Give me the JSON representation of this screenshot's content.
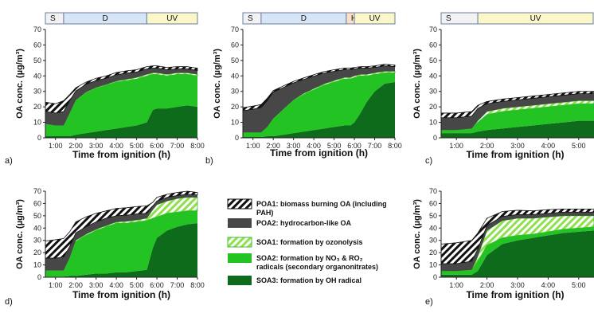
{
  "legend": [
    {
      "name": "POA1: biomass burning OA (including",
      "name2": "PAH)",
      "swatch": "hatch-black"
    },
    {
      "name": "POA2: hydrocarbon-like OA",
      "name2": "",
      "swatch": "#474747"
    },
    {
      "name": "SOA1: formation by ozonolysis",
      "name2": "",
      "swatch": "hatch-green"
    },
    {
      "name": "SOA2: formation by NO₃ & RO₂",
      "name2": "radicals (secondary organonitrates)",
      "swatch": "#22c322"
    },
    {
      "name": "SOA3: formation by OH radical",
      "name2": "",
      "swatch": "#0d6b1b"
    }
  ],
  "chart_data": [
    {
      "type": "area",
      "panel_label": "a)",
      "xlabel": "Time from ignition (h)",
      "ylabel": "OA conc. (µg/m³)",
      "xlim": [
        0.5,
        8
      ],
      "ylim": [
        0,
        70
      ],
      "xticks": [
        1,
        2,
        3,
        4,
        5,
        6,
        7,
        8
      ],
      "xtick_labels": [
        "1:00",
        "2:00",
        "3:00",
        "4:00",
        "5:00",
        "6:00",
        "7:00",
        "8:00"
      ],
      "yticks": [
        0,
        10,
        20,
        30,
        40,
        50,
        60,
        70
      ],
      "phases": [
        {
          "label": "S",
          "start": 0.5,
          "end": 1.4,
          "color": "#f2f2f2"
        },
        {
          "label": "D",
          "start": 1.4,
          "end": 5.5,
          "color": "#d6e6f7"
        },
        {
          "label": "UV",
          "start": 5.5,
          "end": 8,
          "color": "#fbf7c9"
        }
      ],
      "x": [
        0.5,
        1.0,
        1.4,
        1.7,
        2.0,
        2.5,
        3.0,
        3.5,
        4.0,
        4.5,
        5.0,
        5.5,
        5.8,
        6.0,
        6.5,
        7.0,
        7.5,
        8.0
      ],
      "series": [
        {
          "name": "SOA3",
          "values": [
            1,
            1,
            1,
            1,
            2,
            3,
            4,
            5,
            6,
            7,
            8,
            10,
            18,
            19,
            19,
            20,
            21,
            20
          ]
        },
        {
          "name": "SOA2",
          "values": [
            8,
            7,
            7,
            15,
            22,
            26,
            28,
            29,
            30,
            30,
            30,
            30,
            23,
            22,
            21,
            21,
            20,
            20
          ]
        },
        {
          "name": "SOA1",
          "values": [
            0,
            0,
            0,
            0,
            0.3,
            0.5,
            0.5,
            0.5,
            0.7,
            0.8,
            1,
            1,
            1,
            1,
            1,
            1,
            1,
            1
          ]
        },
        {
          "name": "POA2",
          "values": [
            8,
            8,
            9,
            8,
            6,
            5,
            4.5,
            4,
            4,
            4,
            3.5,
            3.5,
            3,
            3,
            3,
            2.5,
            2.5,
            2.5
          ]
        },
        {
          "name": "POA1",
          "values": [
            6,
            6,
            7,
            4,
            2,
            1.5,
            1.5,
            1.5,
            1.5,
            1.5,
            1.5,
            1.5,
            1.5,
            1.5,
            1.5,
            1.5,
            1.5,
            1.5
          ]
        }
      ]
    },
    {
      "type": "area",
      "panel_label": "b)",
      "xlabel": "Time from ignition (h)",
      "ylabel": "OA conc. (µg/m³)",
      "xlim": [
        0.5,
        8
      ],
      "ylim": [
        0,
        70
      ],
      "xticks": [
        1,
        2,
        3,
        4,
        5,
        6,
        7,
        8
      ],
      "xtick_labels": [
        "1:00",
        "2:00",
        "3:00",
        "4:00",
        "5:00",
        "6:00",
        "7:00",
        "8:00"
      ],
      "yticks": [
        0,
        10,
        20,
        30,
        40,
        50,
        60,
        70
      ],
      "phases": [
        {
          "label": "S",
          "start": 0.5,
          "end": 1.4,
          "color": "#f2f2f2"
        },
        {
          "label": "D",
          "start": 1.4,
          "end": 5.6,
          "color": "#d6e6f7"
        },
        {
          "label": "H",
          "start": 5.6,
          "end": 6.0,
          "color": "#fbe0c4"
        },
        {
          "label": "UV",
          "start": 6.0,
          "end": 8,
          "color": "#fbf7c9"
        }
      ],
      "x": [
        0.5,
        1.0,
        1.4,
        1.7,
        2.0,
        2.5,
        3.0,
        3.5,
        4.0,
        4.5,
        5.0,
        5.5,
        5.8,
        6.0,
        6.3,
        6.6,
        7.0,
        7.5,
        8.0
      ],
      "series": [
        {
          "name": "SOA3",
          "values": [
            0.5,
            0.5,
            0.5,
            1,
            1,
            2,
            3,
            4,
            5,
            6,
            7,
            8,
            8,
            10,
            16,
            23,
            30,
            35,
            36
          ]
        },
        {
          "name": "SOA2",
          "values": [
            3,
            3,
            3,
            6,
            11,
            16,
            21,
            24,
            26,
            28,
            29,
            30,
            30,
            29,
            24,
            17,
            11,
            7,
            6
          ]
        },
        {
          "name": "SOA1",
          "values": [
            0,
            0,
            0,
            0,
            0.5,
            0.5,
            0.5,
            0.7,
            0.8,
            0.8,
            1,
            1,
            1,
            1,
            1,
            1,
            1,
            1,
            1
          ]
        },
        {
          "name": "POA2",
          "values": [
            14,
            15,
            16,
            17,
            17,
            14,
            11,
            9,
            8,
            7,
            6,
            5,
            5,
            4.5,
            4,
            4,
            3.5,
            3.5,
            3
          ]
        },
        {
          "name": "POA1",
          "values": [
            2,
            2,
            2,
            1.5,
            1,
            1,
            1,
            1,
            1,
            1,
            1,
            1,
            1,
            1,
            1,
            1,
            1,
            1,
            1
          ]
        }
      ]
    },
    {
      "type": "area",
      "panel_label": "c)",
      "xlabel": "Time from ignition (h)",
      "ylabel": "OA conc. (µg/m³)",
      "xlim": [
        0.5,
        5.5
      ],
      "ylim": [
        0,
        70
      ],
      "xticks": [
        1,
        2,
        3,
        4,
        5
      ],
      "xtick_labels": [
        "1:00",
        "2:00",
        "3:00",
        "4:00",
        "5:00"
      ],
      "yticks": [
        0,
        10,
        20,
        30,
        40,
        50,
        60,
        70
      ],
      "phases": [
        {
          "label": "S",
          "start": 0.5,
          "end": 1.7,
          "color": "#f2f2f2"
        },
        {
          "label": "UV",
          "start": 1.7,
          "end": 5.5,
          "color": "#fbf7c9"
        }
      ],
      "x": [
        0.5,
        1.0,
        1.5,
        1.7,
        2.0,
        2.5,
        3.0,
        3.5,
        4.0,
        4.5,
        5.0,
        5.5
      ],
      "series": [
        {
          "name": "SOA3",
          "values": [
            3,
            3,
            3,
            4,
            5,
            6,
            7,
            8,
            9,
            10,
            11,
            11
          ]
        },
        {
          "name": "SOA2",
          "values": [
            2,
            2,
            3,
            6,
            10,
            11,
            11,
            11,
            11,
            11,
            11,
            11
          ]
        },
        {
          "name": "SOA1",
          "values": [
            0,
            0,
            0,
            1,
            2,
            2,
            2,
            2,
            2,
            2,
            2,
            2
          ]
        },
        {
          "name": "POA2",
          "values": [
            8,
            8,
            8,
            8,
            5,
            4.5,
            4.5,
            4.5,
            4.5,
            4.5,
            4.5,
            4.5
          ]
        },
        {
          "name": "POA1",
          "values": [
            3,
            3,
            3,
            2,
            1.5,
            1.5,
            1.5,
            1.5,
            1.5,
            1.5,
            1.5,
            1.5
          ]
        }
      ]
    },
    {
      "type": "area",
      "panel_label": "d)",
      "xlabel": "Time from ignition (h)",
      "ylabel": "OA conc. (µg/m³)",
      "xlim": [
        0.5,
        8
      ],
      "ylim": [
        0,
        70
      ],
      "xticks": [
        1,
        2,
        3,
        4,
        5,
        6,
        7,
        8
      ],
      "xtick_labels": [
        "1:00",
        "2:00",
        "3:00",
        "4:00",
        "5:00",
        "6:00",
        "7:00",
        "8:00"
      ],
      "yticks": [
        0,
        10,
        20,
        30,
        40,
        50,
        60,
        70
      ],
      "phases": [],
      "x": [
        0.5,
        1.0,
        1.4,
        1.7,
        2.0,
        2.5,
        3.0,
        3.5,
        4.0,
        4.5,
        5.0,
        5.5,
        5.8,
        6.0,
        6.5,
        7.0,
        7.5,
        8.0
      ],
      "series": [
        {
          "name": "SOA3",
          "values": [
            0.5,
            0.5,
            0.5,
            1,
            1,
            2,
            3,
            3,
            4,
            4,
            5,
            6,
            24,
            32,
            38,
            41,
            43,
            44
          ]
        },
        {
          "name": "SOA2",
          "values": [
            5,
            5,
            5,
            15,
            28,
            32,
            35,
            38,
            40,
            40,
            40,
            40,
            24,
            17,
            14,
            12,
            11,
            10
          ]
        },
        {
          "name": "SOA1",
          "values": [
            0,
            0,
            0,
            0,
            1,
            1,
            1,
            1,
            1,
            1.5,
            1.5,
            2,
            7,
            10,
            10,
            11,
            11,
            11
          ]
        },
        {
          "name": "POA2",
          "values": [
            10,
            10,
            11,
            9,
            6,
            6,
            6,
            6,
            5,
            5,
            5,
            4,
            3,
            3,
            3,
            2.5,
            2.5,
            2
          ]
        },
        {
          "name": "POA1",
          "values": [
            14,
            15,
            15,
            12,
            9,
            8,
            7,
            6,
            6,
            6,
            6,
            6,
            3,
            3,
            2.5,
            2.5,
            2.5,
            2
          ]
        }
      ]
    },
    {
      "type": "area",
      "panel_label": "e)",
      "xlabel": "Time from ignition (h)",
      "ylabel": "OA conc. (µg/m³)",
      "xlim": [
        0.5,
        5.5
      ],
      "ylim": [
        0,
        70
      ],
      "xticks": [
        1,
        2,
        3,
        4,
        5
      ],
      "xtick_labels": [
        "1:00",
        "2:00",
        "3:00",
        "4:00",
        "5:00"
      ],
      "yticks": [
        0,
        10,
        20,
        30,
        40,
        50,
        60,
        70
      ],
      "phases": [],
      "x": [
        0.5,
        1.0,
        1.5,
        1.7,
        2.0,
        2.5,
        3.0,
        3.5,
        4.0,
        4.5,
        5.0,
        5.5
      ],
      "series": [
        {
          "name": "SOA3",
          "values": [
            2,
            2,
            2,
            5,
            18,
            27,
            30,
            32,
            34,
            36,
            37,
            38
          ]
        },
        {
          "name": "SOA2",
          "values": [
            3,
            3,
            4,
            8,
            8,
            5,
            4,
            3,
            3,
            3,
            3,
            3
          ]
        },
        {
          "name": "SOA1",
          "values": [
            0,
            0,
            0,
            4,
            12,
            14,
            14,
            13,
            12,
            11,
            10,
            9
          ]
        },
        {
          "name": "POA2",
          "values": [
            6,
            6,
            7,
            6,
            4,
            3.5,
            3,
            3,
            3,
            3,
            3,
            3
          ]
        },
        {
          "name": "POA1",
          "values": [
            16,
            17,
            17,
            13,
            6,
            4,
            3.5,
            3,
            3,
            2.5,
            2.5,
            2.5
          ]
        }
      ]
    }
  ]
}
